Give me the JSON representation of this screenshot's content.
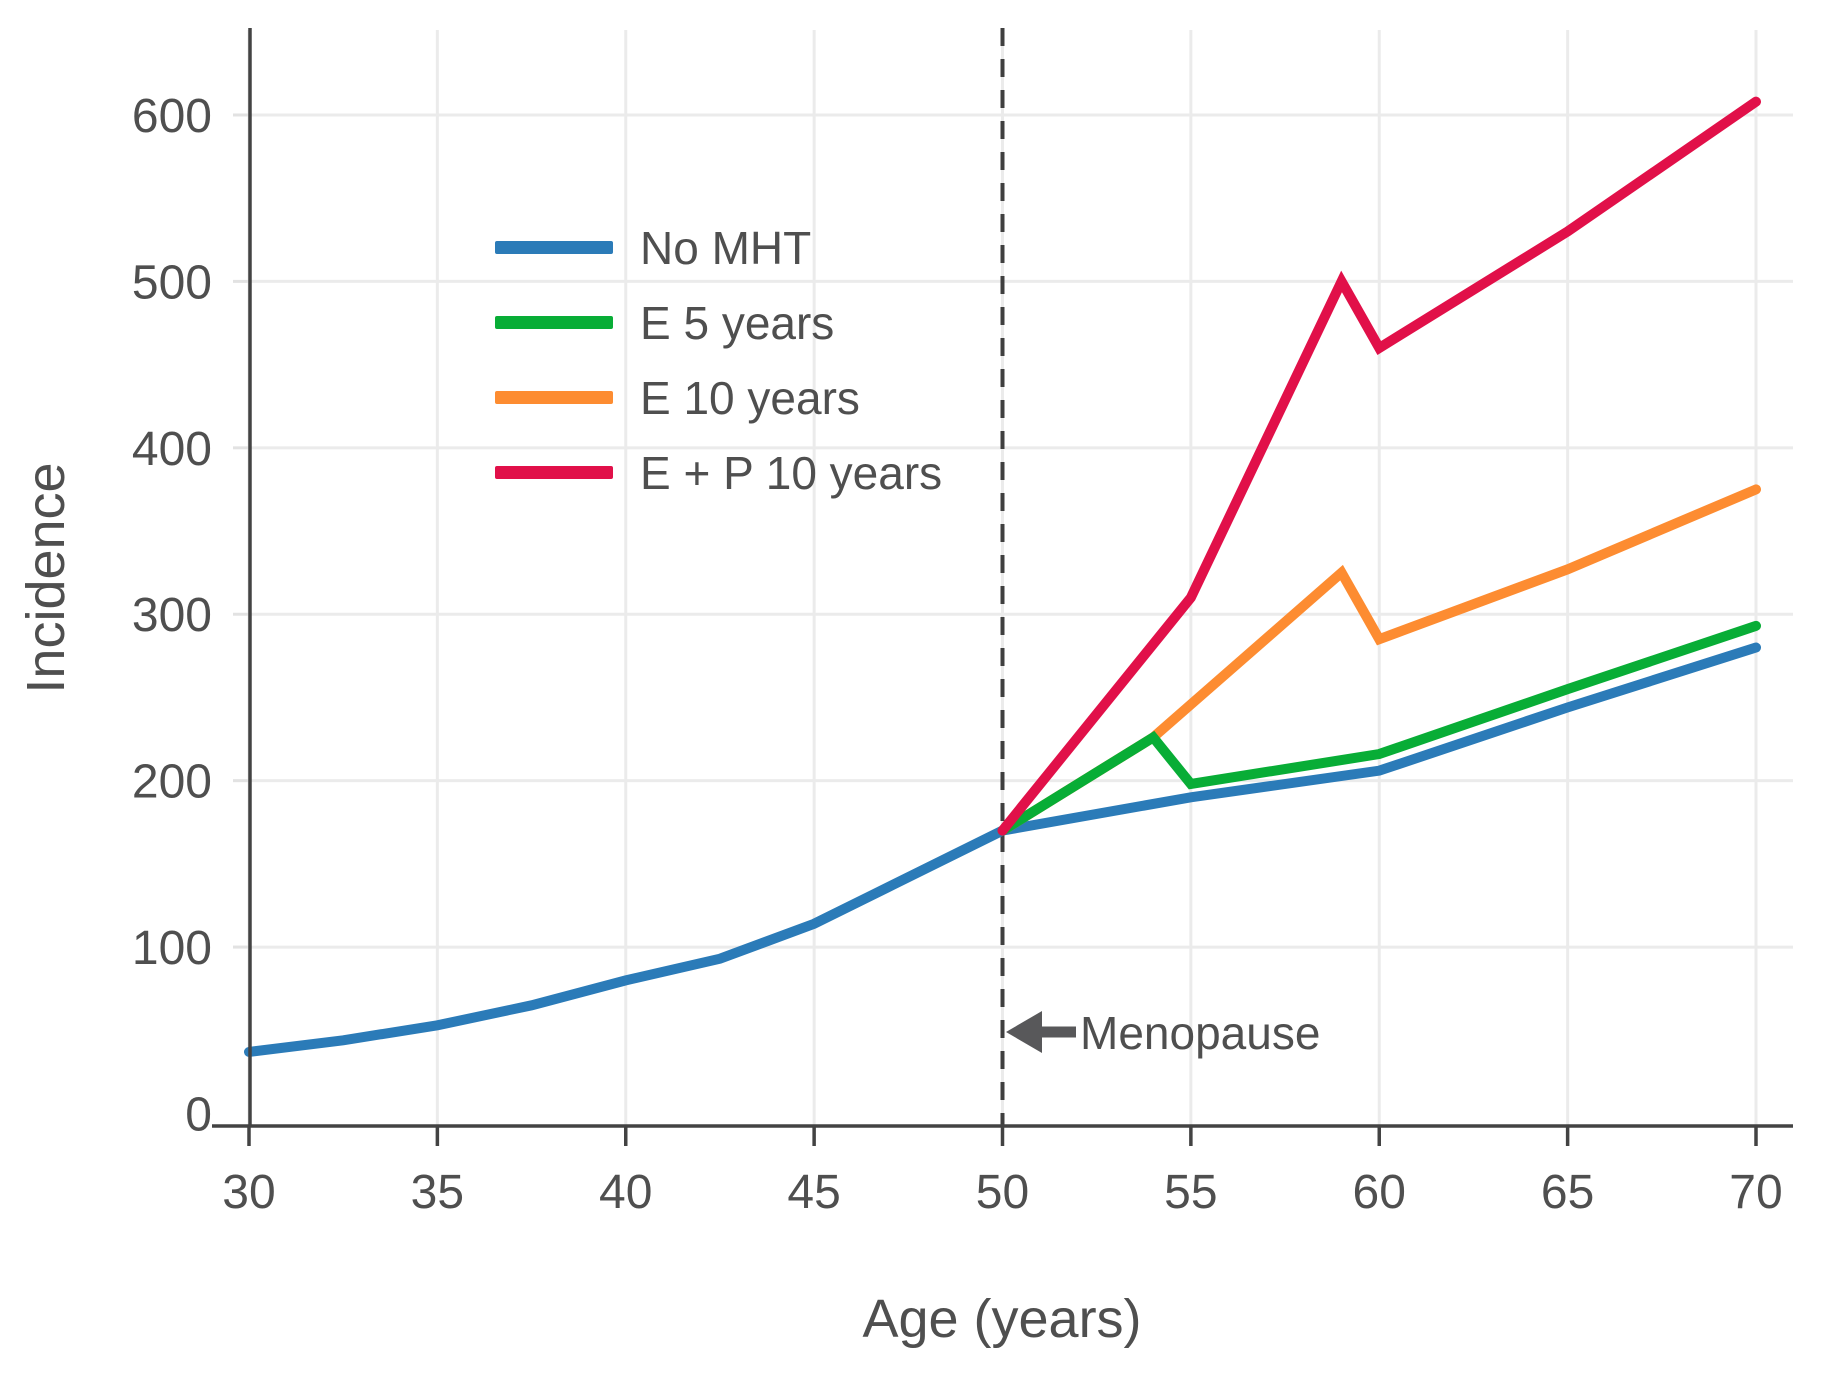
{
  "chart_data": {
    "type": "line",
    "title": "",
    "xlabel": "Age (years)",
    "ylabel": "Incidence",
    "xlim": [
      30,
      71
    ],
    "ylim": [
      0,
      650
    ],
    "x_ticks": [
      30,
      35,
      40,
      45,
      50,
      55,
      60,
      65,
      70
    ],
    "y_ticks": [
      0,
      100,
      200,
      300,
      400,
      500,
      600
    ],
    "grid": true,
    "legend_position": "upper-left-inside",
    "vline": {
      "x": 50,
      "style": "dashed",
      "color": "#3f3f3f"
    },
    "annotation": {
      "text": "Menopause",
      "x": 50.1,
      "y": 49,
      "arrow": "left"
    },
    "series": [
      {
        "name": "No MHT",
        "color": "#2b7bb8",
        "x": [
          30,
          32.5,
          35,
          37.5,
          40,
          42.5,
          45,
          50,
          55,
          60,
          65,
          70
        ],
        "y": [
          37,
          44,
          53,
          65,
          80,
          93,
          114,
          170,
          190,
          206,
          244,
          280
        ]
      },
      {
        "name": "E 5 years",
        "color": "#08ad36",
        "x": [
          50,
          54,
          55,
          60,
          65,
          70
        ],
        "y": [
          170,
          226,
          198,
          216,
          255,
          293
        ]
      },
      {
        "name": "E 10 years",
        "color": "#fd8c31",
        "x": [
          50,
          54,
          59,
          60,
          65,
          70
        ],
        "y": [
          170,
          226,
          325,
          285,
          327,
          375
        ]
      },
      {
        "name": "E + P 10 years",
        "color": "#e11049",
        "x": [
          50,
          55,
          59,
          60,
          65,
          70
        ],
        "y": [
          170,
          310,
          500,
          460,
          530,
          608
        ]
      }
    ],
    "style": {
      "grid_color": "#ebebeb",
      "minor_tick_color": "#e2e2e2",
      "axis_color": "#434343",
      "text_color": "#4f4f4f"
    }
  }
}
